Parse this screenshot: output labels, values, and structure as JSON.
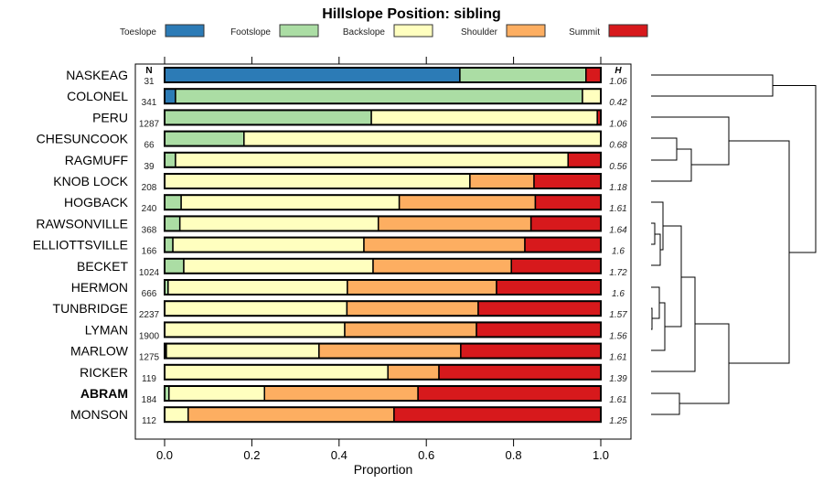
{
  "chart_data": {
    "type": "bar",
    "orientation": "horizontal-stacked",
    "title": "Hillslope Position: sibling",
    "xlabel": "Proportion",
    "xlim": [
      0,
      1
    ],
    "xticks": [
      "0.0",
      "0.2",
      "0.4",
      "0.6",
      "0.8",
      "1.0"
    ],
    "n_header": "N",
    "h_header": "H",
    "legend_position": "top",
    "series": [
      {
        "name": "Toeslope",
        "color": "#2C7BB6"
      },
      {
        "name": "Footslope",
        "color": "#ABDDA4"
      },
      {
        "name": "Backslope",
        "color": "#FFFFBF"
      },
      {
        "name": "Shoulder",
        "color": "#FDAE61"
      },
      {
        "name": "Summit",
        "color": "#D7191C"
      }
    ],
    "rows": [
      {
        "label": "NASKEAG",
        "n": "31",
        "h": "1.06",
        "values": [
          0.677,
          0.289,
          0,
          0,
          0.034
        ]
      },
      {
        "label": "COLONEL",
        "n": "341",
        "h": "0.42",
        "values": [
          0.025,
          0.933,
          0.042,
          0,
          0
        ]
      },
      {
        "label": "PERU",
        "n": "1287",
        "h": "1.06",
        "values": [
          0,
          0.474,
          0.518,
          0,
          0.008
        ]
      },
      {
        "label": "CHESUNCOOK",
        "n": "66",
        "h": "0.68",
        "values": [
          0,
          0.182,
          0.818,
          0,
          0
        ]
      },
      {
        "label": "RAGMUFF",
        "n": "39",
        "h": "0.56",
        "values": [
          0,
          0.025,
          0.9,
          0,
          0.075
        ]
      },
      {
        "label": "KNOB LOCK",
        "n": "208",
        "h": "1.18",
        "values": [
          0,
          0,
          0.7,
          0.147,
          0.153
        ]
      },
      {
        "label": "HOGBACK",
        "n": "240",
        "h": "1.61",
        "values": [
          0,
          0.038,
          0.5,
          0.312,
          0.15
        ]
      },
      {
        "label": "RAWSONVILLE",
        "n": "368",
        "h": "1.64",
        "values": [
          0,
          0.035,
          0.455,
          0.35,
          0.16
        ]
      },
      {
        "label": "ELLIOTTSVILLE",
        "n": "166",
        "h": "1.6",
        "values": [
          0,
          0.019,
          0.438,
          0.369,
          0.174
        ]
      },
      {
        "label": "BECKET",
        "n": "1024",
        "h": "1.72",
        "values": [
          0,
          0.044,
          0.434,
          0.317,
          0.205
        ]
      },
      {
        "label": "HERMON",
        "n": "666",
        "h": "1.6",
        "values": [
          0,
          0.008,
          0.411,
          0.342,
          0.239
        ]
      },
      {
        "label": "TUNBRIDGE",
        "n": "2237",
        "h": "1.57",
        "values": [
          0,
          0,
          0.418,
          0.301,
          0.281
        ]
      },
      {
        "label": "LYMAN",
        "n": "1900",
        "h": "1.56",
        "values": [
          0,
          0,
          0.413,
          0.302,
          0.285
        ]
      },
      {
        "label": "MARLOW",
        "n": "1275",
        "h": "1.61",
        "values": [
          0,
          0.004,
          0.35,
          0.325,
          0.321
        ]
      },
      {
        "label": "RICKER",
        "n": "119",
        "h": "1.39",
        "values": [
          0,
          0,
          0.512,
          0.117,
          0.371
        ]
      },
      {
        "label": "ABRAM",
        "n": "184",
        "h": "1.61",
        "values": [
          0,
          0.01,
          0.219,
          0.352,
          0.419
        ],
        "bold": true
      },
      {
        "label": "MONSON",
        "n": "112",
        "h": "1.25",
        "values": [
          0,
          0,
          0.054,
          0.472,
          0.474
        ]
      }
    ]
  }
}
